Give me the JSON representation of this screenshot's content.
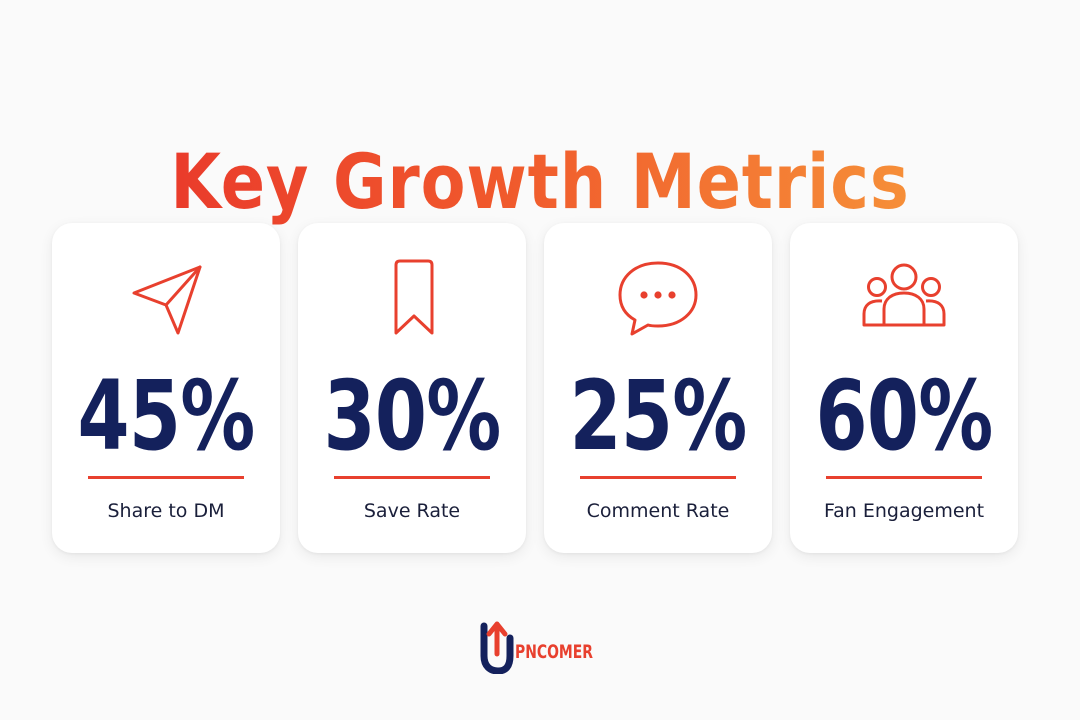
{
  "header": {
    "title": "Key Growth Metrics"
  },
  "metrics": [
    {
      "value": "45%",
      "label": "Share to DM",
      "icon": "paper-plane-icon"
    },
    {
      "value": "30%",
      "label": "Save Rate",
      "icon": "bookmark-icon"
    },
    {
      "value": "25%",
      "label": "Comment Rate",
      "icon": "speech-bubble-icon"
    },
    {
      "value": "60%",
      "label": "Fan Engagement",
      "icon": "users-group-icon"
    }
  ],
  "footer": {
    "logo_text": "UPNCOMER"
  },
  "colors": {
    "accent": "#e8402e",
    "accent_gradient_end": "#f79b3b",
    "value_text": "#14215c",
    "card_background": "#ffffff",
    "page_background": "#fafafa"
  }
}
